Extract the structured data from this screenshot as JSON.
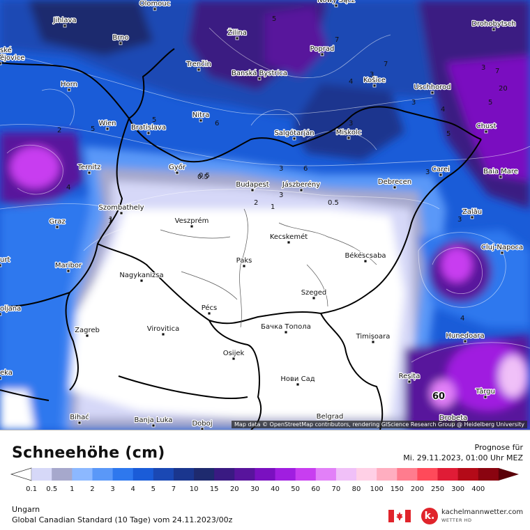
{
  "legend": {
    "title": "Schneehöhe (cm)",
    "unit": "cm",
    "levels": [
      "0.1",
      "0.5",
      "1",
      "2",
      "3",
      "4",
      "5",
      "7",
      "10",
      "15",
      "20",
      "30",
      "40",
      "50",
      "60",
      "70",
      "80",
      "100",
      "150",
      "200",
      "250",
      "300",
      "400"
    ],
    "colors": [
      "#ffffff",
      "#d6d8f8",
      "#a6a8cc",
      "#8cb8ff",
      "#5a98f8",
      "#2e78ee",
      "#1a5cd8",
      "#1a48b4",
      "#1a368e",
      "#1e2a6e",
      "#3a1a82",
      "#58149c",
      "#7a10c0",
      "#a01ee0",
      "#c83ef0",
      "#e280f8",
      "#f0c0f8",
      "#ffd0e6",
      "#ffaec0",
      "#ff7c8e",
      "#ff4a5a",
      "#e01c36",
      "#b40a18",
      "#8a0410",
      "#5a0008"
    ]
  },
  "forecast": {
    "label": "Prognose für",
    "date": "Mi. 29.11.2023, 01:00 Uhr MEZ"
  },
  "region": "Ungarn",
  "model_run": "Global Canadian Standard (10 Tage) vom 24.11.2023/00z",
  "brand": {
    "name": "kachelmannwetter.com",
    "sub": "WETTER HD",
    "logo_letter": "k."
  },
  "attribution": "Map data © OpenStreetMap contributors, rendering GIScience Research Group @ Heidelberg University",
  "cities": [
    {
      "name": "Olomouc"
    },
    {
      "name": "Nowy Sącz"
    },
    {
      "name": "Jihlava"
    },
    {
      "name": "Drohobytsch"
    },
    {
      "name": "Brno"
    },
    {
      "name": "Žilina"
    },
    {
      "name": "Poprad"
    },
    {
      "name": "ské"
    },
    {
      "name": "ějovice"
    },
    {
      "name": "Trenčín"
    },
    {
      "name": "Banská Bystrica"
    },
    {
      "name": "Košice"
    },
    {
      "name": "Uschhorod"
    },
    {
      "name": "Horn"
    },
    {
      "name": "Nitra"
    },
    {
      "name": "Wien"
    },
    {
      "name": "Bratislava"
    },
    {
      "name": "Salgótarján"
    },
    {
      "name": "Miskolc"
    },
    {
      "name": "Chust"
    },
    {
      "name": "Ternitz"
    },
    {
      "name": "Győr"
    },
    {
      "name": "Carei"
    },
    {
      "name": "Baia Mare"
    },
    {
      "name": "Budapest"
    },
    {
      "name": "Jászberény"
    },
    {
      "name": "Debrecen"
    },
    {
      "name": "Szombathely"
    },
    {
      "name": "Zalău"
    },
    {
      "name": "Graz"
    },
    {
      "name": "Veszprém"
    },
    {
      "name": "Kecskemét"
    },
    {
      "name": "Cluj-Napoca"
    },
    {
      "name": "urt"
    },
    {
      "name": "Paks"
    },
    {
      "name": "Békéscsaba"
    },
    {
      "name": "Maribor"
    },
    {
      "name": "Nagykanizsa"
    },
    {
      "name": "Szeged"
    },
    {
      "name": "oljana"
    },
    {
      "name": "Pécs"
    },
    {
      "name": "Бачка Топола"
    },
    {
      "name": "Zagreb"
    },
    {
      "name": "Virovitica"
    },
    {
      "name": "Timișoara"
    },
    {
      "name": "Hunedoara"
    },
    {
      "name": "Osijek"
    },
    {
      "name": "eka"
    },
    {
      "name": "Нови Сад"
    },
    {
      "name": "Reșița"
    },
    {
      "name": "Târgu"
    },
    {
      "name": "Bihać"
    },
    {
      "name": "Belgrad"
    },
    {
      "name": "Banja Luka"
    },
    {
      "name": "Doboj"
    },
    {
      "name": "Drobeta"
    }
  ],
  "contour_labels": [
    "2",
    "5",
    "4",
    "1",
    "5",
    "3",
    "6",
    "5",
    "5",
    "0.5",
    "7",
    "20",
    "4",
    "3",
    "6",
    "3",
    "3",
    "7",
    "3",
    "5",
    "4",
    "3",
    "2",
    "1",
    "0.5",
    "0.5",
    "4",
    "1",
    "3",
    "7",
    "3"
  ],
  "max_label": "60"
}
